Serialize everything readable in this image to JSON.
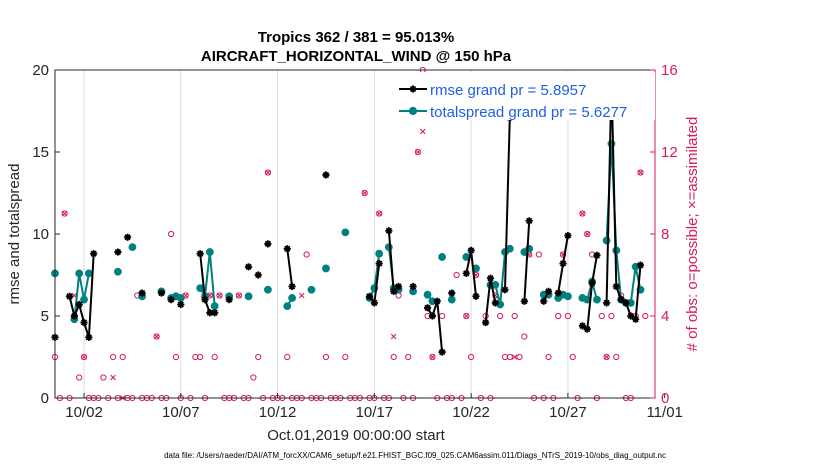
{
  "chart_data": {
    "type": "line",
    "title": "Tropics 362 / 381 = 95.013%",
    "subtitle": "AIRCRAFT_HORIZONTAL_WIND @ 150 hPa",
    "xlabel": "Oct.01,2019 00:00:00 start",
    "ylabel": "rmse and totalspread",
    "y2label": "# of obs: o=possible; ×=assimilated",
    "xlim": [
      0.5,
      31.5
    ],
    "ylim": [
      0,
      20
    ],
    "y2lim": [
      0,
      16
    ],
    "xticks": [
      {
        "x": 2,
        "label": "10/02"
      },
      {
        "x": 7,
        "label": "10/07"
      },
      {
        "x": 12,
        "label": "10/12"
      },
      {
        "x": 17,
        "label": "10/17"
      },
      {
        "x": 22,
        "label": "10/22"
      },
      {
        "x": 27,
        "label": "10/27"
      },
      {
        "x": 32,
        "label": "11/01"
      }
    ],
    "yticks": [
      0,
      5,
      10,
      15,
      20
    ],
    "y2ticks": [
      0,
      4,
      8,
      12,
      16
    ],
    "grid": "x",
    "legend_position": "top-right",
    "series": [
      {
        "name": "rmse grand pr = 5.8957",
        "color": "#000000",
        "marker": "star",
        "values": [
          [
            0.5,
            3.7
          ],
          [
            1.25,
            6.2
          ],
          [
            1.5,
            5.0
          ],
          [
            1.75,
            5.7
          ],
          [
            2.0,
            4.6
          ],
          [
            2.25,
            3.7
          ],
          [
            2.5,
            8.8
          ],
          [
            3.75,
            8.9
          ],
          [
            4.25,
            9.8
          ],
          [
            5.0,
            6.4
          ],
          [
            6.0,
            6.4
          ],
          [
            6.5,
            6.0
          ],
          [
            7.0,
            5.7
          ],
          [
            8.0,
            8.8
          ],
          [
            8.25,
            6.0
          ],
          [
            8.5,
            5.2
          ],
          [
            8.75,
            5.2
          ],
          [
            9.5,
            6.0
          ],
          [
            10.5,
            8.0
          ],
          [
            11.0,
            7.5
          ],
          [
            11.5,
            9.4
          ],
          [
            12.5,
            9.1
          ],
          [
            12.75,
            6.8
          ],
          [
            14.5,
            13.6
          ],
          [
            16.75,
            6.2
          ],
          [
            17.0,
            5.8
          ],
          [
            17.25,
            8.2
          ],
          [
            17.75,
            10.2
          ],
          [
            18.0,
            6.5
          ],
          [
            18.25,
            6.8
          ],
          [
            19.0,
            6.8
          ],
          [
            19.75,
            5.5
          ],
          [
            20.0,
            5.0
          ],
          [
            20.25,
            5.9
          ],
          [
            20.5,
            2.8
          ],
          [
            21.0,
            6.4
          ],
          [
            21.75,
            7.6
          ],
          [
            22.0,
            9.0
          ],
          [
            22.25,
            6.2
          ],
          [
            22.75,
            4.6
          ],
          [
            23.0,
            7.3
          ],
          [
            23.25,
            5.8
          ],
          [
            23.75,
            6.6
          ],
          [
            24.0,
            17.1
          ],
          [
            24.75,
            5.9
          ],
          [
            25.0,
            10.8
          ],
          [
            25.75,
            5.9
          ],
          [
            26.0,
            6.5
          ],
          [
            26.5,
            6.4
          ],
          [
            26.75,
            8.2
          ],
          [
            27.0,
            9.9
          ],
          [
            27.75,
            4.4
          ],
          [
            28.0,
            4.2
          ],
          [
            28.25,
            7.0
          ],
          [
            28.5,
            8.7
          ],
          [
            29.0,
            5.8
          ],
          [
            29.25,
            19.4
          ],
          [
            29.5,
            6.8
          ],
          [
            29.75,
            6.0
          ],
          [
            30.0,
            5.8
          ],
          [
            30.25,
            5.0
          ],
          [
            30.5,
            4.8
          ],
          [
            30.75,
            8.1
          ]
        ]
      },
      {
        "name": "totalspread grand pr = 5.6277",
        "color": "#008080",
        "marker": "circle",
        "values": [
          [
            0.5,
            7.6
          ],
          [
            1.5,
            4.8
          ],
          [
            1.75,
            7.6
          ],
          [
            2.0,
            6.0
          ],
          [
            2.25,
            7.6
          ],
          [
            3.75,
            7.7
          ],
          [
            4.5,
            9.2
          ],
          [
            5.0,
            6.2
          ],
          [
            6.0,
            6.5
          ],
          [
            6.5,
            6.1
          ],
          [
            6.75,
            6.2
          ],
          [
            7.0,
            6.1
          ],
          [
            8.0,
            6.7
          ],
          [
            8.25,
            6.2
          ],
          [
            8.5,
            8.9
          ],
          [
            8.75,
            5.6
          ],
          [
            9.5,
            6.2
          ],
          [
            10.5,
            6.2
          ],
          [
            11.5,
            6.6
          ],
          [
            12.5,
            5.6
          ],
          [
            12.75,
            6.1
          ],
          [
            13.75,
            6.6
          ],
          [
            14.5,
            7.9
          ],
          [
            15.5,
            10.1
          ],
          [
            16.75,
            6.1
          ],
          [
            17.0,
            6.7
          ],
          [
            17.25,
            8.8
          ],
          [
            17.75,
            9.2
          ],
          [
            18.0,
            6.7
          ],
          [
            18.25,
            6.6
          ],
          [
            19.0,
            6.5
          ],
          [
            19.75,
            6.3
          ],
          [
            20.0,
            5.9
          ],
          [
            20.5,
            8.6
          ],
          [
            21.0,
            6.0
          ],
          [
            21.75,
            8.6
          ],
          [
            22.25,
            7.9
          ],
          [
            23.0,
            6.9
          ],
          [
            23.25,
            6.9
          ],
          [
            23.5,
            5.7
          ],
          [
            23.75,
            8.9
          ],
          [
            24.0,
            9.1
          ],
          [
            24.75,
            8.9
          ],
          [
            25.0,
            9.1
          ],
          [
            25.75,
            6.3
          ],
          [
            26.0,
            6.3
          ],
          [
            26.5,
            6.1
          ],
          [
            26.75,
            6.3
          ],
          [
            27.0,
            6.2
          ],
          [
            27.75,
            6.1
          ],
          [
            28.0,
            6.0
          ],
          [
            28.25,
            7.1
          ],
          [
            28.5,
            6.0
          ],
          [
            29.0,
            9.6
          ],
          [
            29.25,
            15.5
          ],
          [
            29.5,
            9.0
          ],
          [
            29.75,
            6.0
          ],
          [
            30.0,
            5.8
          ],
          [
            30.25,
            5.8
          ],
          [
            30.5,
            8.0
          ],
          [
            30.75,
            6.6
          ]
        ]
      }
    ],
    "obs": {
      "name": "# of obs",
      "color": "#d81b60",
      "possible": [
        [
          0.5,
          2
        ],
        [
          0.75,
          0
        ],
        [
          1.0,
          9
        ],
        [
          1.25,
          0
        ],
        [
          1.5,
          4
        ],
        [
          1.75,
          1
        ],
        [
          2.0,
          2
        ],
        [
          2.25,
          0
        ],
        [
          2.5,
          0
        ],
        [
          2.75,
          0
        ],
        [
          3.0,
          1
        ],
        [
          3.25,
          0
        ],
        [
          3.5,
          2
        ],
        [
          3.75,
          0
        ],
        [
          4.0,
          2
        ],
        [
          4.25,
          0
        ],
        [
          4.5,
          0
        ],
        [
          4.75,
          5
        ],
        [
          5.0,
          0
        ],
        [
          5.25,
          0
        ],
        [
          5.5,
          0
        ],
        [
          5.75,
          3
        ],
        [
          6.0,
          0
        ],
        [
          6.25,
          0
        ],
        [
          6.5,
          8
        ],
        [
          6.75,
          2
        ],
        [
          7.0,
          0
        ],
        [
          7.25,
          5
        ],
        [
          7.5,
          0
        ],
        [
          7.75,
          2
        ],
        [
          8.0,
          2
        ],
        [
          8.25,
          0
        ],
        [
          8.5,
          5
        ],
        [
          8.75,
          2
        ],
        [
          9.0,
          5
        ],
        [
          9.25,
          0
        ],
        [
          9.5,
          0
        ],
        [
          9.75,
          0
        ],
        [
          10.0,
          5
        ],
        [
          10.25,
          0
        ],
        [
          10.5,
          0
        ],
        [
          10.75,
          1
        ],
        [
          11.0,
          2
        ],
        [
          11.25,
          0
        ],
        [
          11.5,
          11
        ],
        [
          11.75,
          0
        ],
        [
          12.0,
          0
        ],
        [
          12.25,
          0
        ],
        [
          12.5,
          2
        ],
        [
          12.75,
          0
        ],
        [
          13.0,
          0
        ],
        [
          13.25,
          0
        ],
        [
          13.5,
          7
        ],
        [
          13.75,
          0
        ],
        [
          14.0,
          0
        ],
        [
          14.25,
          0
        ],
        [
          14.5,
          2
        ],
        [
          14.75,
          0
        ],
        [
          15.0,
          0
        ],
        [
          15.25,
          0
        ],
        [
          15.5,
          2
        ],
        [
          15.75,
          0
        ],
        [
          16.0,
          0
        ],
        [
          16.25,
          0
        ],
        [
          16.5,
          10
        ],
        [
          16.75,
          0
        ],
        [
          17.0,
          0
        ],
        [
          17.25,
          9
        ],
        [
          17.5,
          0
        ],
        [
          17.75,
          0
        ],
        [
          18.0,
          2
        ],
        [
          18.25,
          5
        ],
        [
          18.5,
          0
        ],
        [
          18.75,
          2
        ],
        [
          19.0,
          0
        ],
        [
          19.25,
          12
        ],
        [
          19.5,
          16
        ],
        [
          19.75,
          4
        ],
        [
          20.0,
          2
        ],
        [
          20.25,
          0
        ],
        [
          20.5,
          4
        ],
        [
          20.75,
          0
        ],
        [
          21.0,
          0
        ],
        [
          21.25,
          6
        ],
        [
          21.5,
          0
        ],
        [
          21.75,
          4
        ],
        [
          22.0,
          2
        ],
        [
          22.25,
          6
        ],
        [
          22.5,
          0
        ],
        [
          22.75,
          4
        ],
        [
          23.0,
          0
        ],
        [
          23.25,
          5
        ],
        [
          23.5,
          4
        ],
        [
          23.75,
          2
        ],
        [
          24.0,
          2
        ],
        [
          24.25,
          4
        ],
        [
          24.5,
          2
        ],
        [
          24.75,
          3
        ],
        [
          25.0,
          7
        ],
        [
          25.25,
          0
        ],
        [
          25.5,
          7
        ],
        [
          25.75,
          0
        ],
        [
          26.0,
          2
        ],
        [
          26.25,
          0
        ],
        [
          26.5,
          4
        ],
        [
          26.75,
          7
        ],
        [
          27.0,
          4
        ],
        [
          27.25,
          2
        ],
        [
          27.5,
          0
        ],
        [
          27.75,
          9
        ],
        [
          28.0,
          8
        ],
        [
          28.25,
          7
        ],
        [
          28.5,
          0
        ],
        [
          28.75,
          4
        ],
        [
          29.0,
          2
        ],
        [
          29.25,
          4
        ],
        [
          29.5,
          2
        ],
        [
          29.75,
          5
        ],
        [
          30.0,
          0
        ],
        [
          30.25,
          0
        ],
        [
          30.5,
          4
        ],
        [
          30.75,
          11
        ],
        [
          31.0,
          4
        ]
      ],
      "assimilated": [
        [
          1.0,
          9
        ],
        [
          1.5,
          5
        ],
        [
          2.0,
          2
        ],
        [
          3.5,
          1
        ],
        [
          4.0,
          0
        ],
        [
          5.75,
          3
        ],
        [
          7.25,
          5
        ],
        [
          8.5,
          5
        ],
        [
          9.0,
          5
        ],
        [
          10.0,
          5
        ],
        [
          11.5,
          11
        ],
        [
          13.25,
          5
        ],
        [
          16.5,
          10
        ],
        [
          17.25,
          9
        ],
        [
          18.0,
          3
        ],
        [
          19.25,
          12
        ],
        [
          19.5,
          13
        ],
        [
          20.0,
          2
        ],
        [
          21.75,
          4
        ],
        [
          22.25,
          6
        ],
        [
          23.25,
          5
        ],
        [
          24.25,
          2
        ],
        [
          25.0,
          7
        ],
        [
          26.75,
          7
        ],
        [
          27.75,
          9
        ],
        [
          28.0,
          8
        ],
        [
          29.0,
          2
        ],
        [
          30.75,
          11
        ]
      ]
    }
  },
  "footnote": "data file: /Users/raeder/DAI/ATM_forcXX/CAM6_setup/f.e21.FHIST_BGC.f09_025.CAM6assim.011/Diags_NTrS_2019-10/obs_diag_output.nc"
}
